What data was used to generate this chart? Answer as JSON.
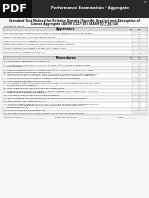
{
  "bg_color": "#f5f5f5",
  "pdf_badge_text": "PDF",
  "header_line1": "Performance Examination - Aggregate",
  "header_line2": "Standard Test Method for Relative Density (Specific Gravity) and Absorption of",
  "header_line3": "Coarse Aggregate (ASTM C127-15) (AASHTO T 85-14)",
  "candidate_label": "Candidate Name: ___________________________",
  "roster_label": "ROSTER ID: ___________",
  "section1_title": "Apparatus",
  "col_headers": [
    "Trial",
    "Trial"
  ],
  "col_subheaders": [
    "1",
    "2"
  ],
  "apparatus_items": [
    "Balance: Resolution readable, and accurate to 0.05% of sample weight or 0.5g (greater)",
    "Sieves: a 19-mm (3/4-in.) or other sizes as required",
    "Oven: electronic control temperature of 110 ± 5°C (230 ± 9°F)",
    "Water Tank: Capable of completely submerging the sample container",
    "Sample Container: Wire basket 3.35-mm (No. 6) mesh or finer",
    "Immersion Water: Temperature 23± 4°C"
  ],
  "section2_title": "Procedures",
  "procedure_items": [
    "1)  The sample is obtained by Practices C702",
    "2)  Screened on a 19-mm (3/4-in.) sieve (or 37.5mm (1½-inch) sieve if sample surface\n     has a concave)",
    "3)  Sample mass as follows: min. at least 3 kg, 1½-in. = 5 kg, 1-in. = 4 kg, 1¼-in. = 3 kg",
    "4)  Wash sample to clean surfaces of particles",
    "5)  Sample dried to constant mass at 110 ± 5°C (230 ± 9°F) and cooled to room temperature\n     for 1 to 3 hours (for smaller sizes, room temperature sufficient; sample for larger sizes:\n     allow it from drying not necessary if materials meet conditions of above)",
    "6)  Cover sample with water for 15 to 19 hours",
    "7)  Roll sample in cloth to remove visible films of water. (A moving stream of air may be used to\n     assist in the drying operation.)",
    "8)  Wipe larger particles individually until each temperature",
    "9)  Determine SSD mass for the sample. (If moisture determined to exceed 0.1g (= 0.05% of\n     sample weight satisfactory is greater))",
    "10) Immediately place sample in the sample container",
    "11) Before weighing, remove entrapped air by shaking container while immersed",
    "12) Mass determined in water at 23 ± 4°C",
    "13) Dried to constant mass at 110 ± 5°C (230 ± 9°F) and cooled to room temperature for 1 to\n     3 hours (or until aggregate has cooled to comfortable handling temperature.\n     approximately 50°C)",
    "14) Oven dried sample mass determined",
    "15) Bulk specific gravity calculated to nearest 0.01 using the following formulas:"
  ],
  "footer_examiner": "Examiner Name: ____________________",
  "footer_signature": "Examiner Signature: ____________________",
  "footer_date": "Date: __________"
}
